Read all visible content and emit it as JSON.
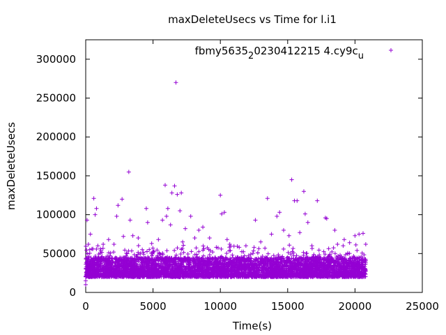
{
  "chart_data": {
    "type": "scatter",
    "title": "maxDeleteUsecs vs Time for l.i1",
    "xlabel": "Time(s)",
    "ylabel": "maxDeleteUsecs",
    "xlim": [
      0,
      25000
    ],
    "ylim": [
      0,
      325000
    ],
    "xticks": [
      0,
      5000,
      10000,
      15000,
      20000,
      25000
    ],
    "yticks": [
      0,
      50000,
      100000,
      150000,
      200000,
      250000,
      300000
    ],
    "xtick_labels": [
      "0",
      "5000",
      "10000",
      "15000",
      "20000",
      "25000"
    ],
    "ytick_labels": [
      "0",
      "50000",
      "100000",
      "150000",
      "200000",
      "250000",
      "300000"
    ],
    "grid": false,
    "legend": {
      "position": "top-right"
    },
    "series": [
      {
        "name": "fbmy5635_20230412215 4.cy9c_u",
        "legend_parts": [
          "fbmy5635",
          "2",
          "0230412215 4.cy9c",
          "u"
        ],
        "color": "#9400d3",
        "marker": "plus",
        "dense_band": {
          "x_range": [
            0,
            20800
          ],
          "y_range": [
            20000,
            45000
          ]
        },
        "outliers": [
          [
            0,
            10000
          ],
          [
            0,
            15000
          ],
          [
            100,
            93000
          ],
          [
            200,
            62000
          ],
          [
            300,
            55000
          ],
          [
            350,
            75000
          ],
          [
            600,
            121000
          ],
          [
            700,
            100000
          ],
          [
            800,
            108000
          ],
          [
            900,
            60000
          ],
          [
            1300,
            62000
          ],
          [
            1700,
            68000
          ],
          [
            2100,
            62000
          ],
          [
            2300,
            98000
          ],
          [
            2400,
            112000
          ],
          [
            2700,
            120000
          ],
          [
            2800,
            72000
          ],
          [
            3200,
            155000
          ],
          [
            3300,
            93000
          ],
          [
            3500,
            73000
          ],
          [
            3900,
            70000
          ],
          [
            4200,
            55000
          ],
          [
            4500,
            108000
          ],
          [
            4600,
            90000
          ],
          [
            4900,
            63000
          ],
          [
            5400,
            68000
          ],
          [
            5700,
            93000
          ],
          [
            5900,
            138000
          ],
          [
            6000,
            98000
          ],
          [
            6100,
            108000
          ],
          [
            6300,
            87000
          ],
          [
            6400,
            128000
          ],
          [
            6600,
            137000
          ],
          [
            6700,
            270000
          ],
          [
            6800,
            126000
          ],
          [
            7000,
            105000
          ],
          [
            7100,
            128000
          ],
          [
            7200,
            65000
          ],
          [
            7400,
            82000
          ],
          [
            7800,
            98000
          ],
          [
            8100,
            70000
          ],
          [
            8400,
            80000
          ],
          [
            8700,
            84000
          ],
          [
            9200,
            70000
          ],
          [
            9700,
            58000
          ],
          [
            10000,
            125000
          ],
          [
            10100,
            101000
          ],
          [
            10300,
            103000
          ],
          [
            10500,
            68000
          ],
          [
            10700,
            62000
          ],
          [
            11400,
            58000
          ],
          [
            11900,
            60000
          ],
          [
            12600,
            93000
          ],
          [
            13000,
            65000
          ],
          [
            13500,
            121000
          ],
          [
            13800,
            75000
          ],
          [
            14200,
            98000
          ],
          [
            14400,
            103000
          ],
          [
            14700,
            80000
          ],
          [
            15100,
            73000
          ],
          [
            15300,
            145000
          ],
          [
            15500,
            118000
          ],
          [
            15700,
            118000
          ],
          [
            15900,
            77000
          ],
          [
            16200,
            130000
          ],
          [
            16300,
            101000
          ],
          [
            16500,
            90000
          ],
          [
            16800,
            60000
          ],
          [
            17200,
            118000
          ],
          [
            17800,
            96000
          ],
          [
            17900,
            95000
          ],
          [
            18500,
            80000
          ],
          [
            18700,
            62000
          ],
          [
            19200,
            68000
          ],
          [
            19600,
            64000
          ],
          [
            20000,
            73000
          ],
          [
            20300,
            75000
          ],
          [
            20600,
            76000
          ],
          [
            20800,
            62000
          ]
        ]
      }
    ]
  }
}
